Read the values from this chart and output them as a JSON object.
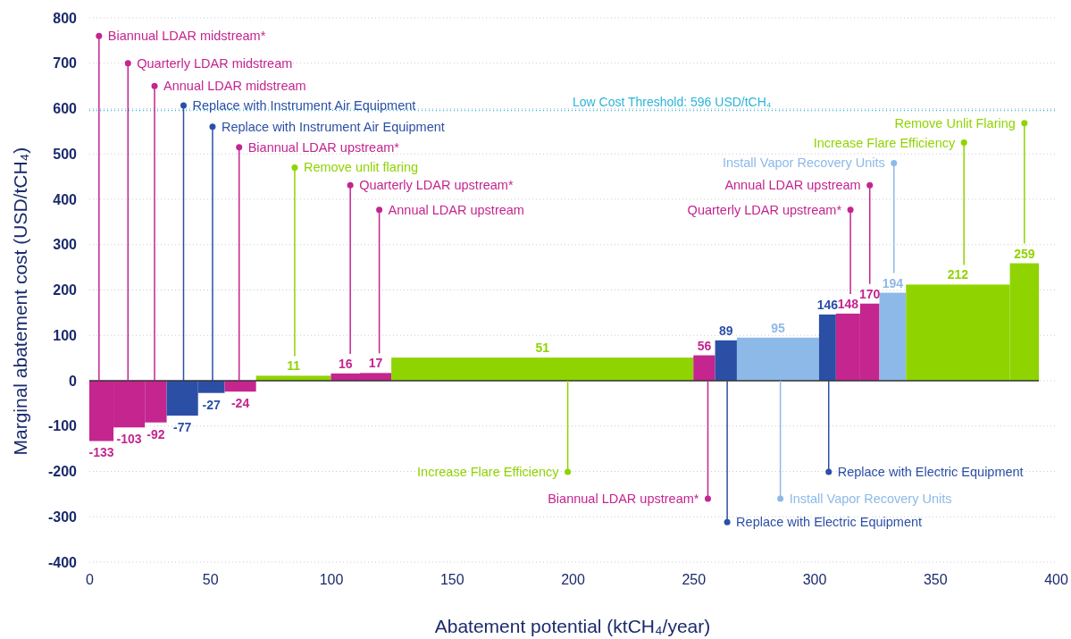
{
  "chart_data": {
    "type": "histogram",
    "xlabel": "Abatement potential (ktCH₄/year)",
    "ylabel": "Marginal abatement cost (USD/tCH₄)",
    "bins": [
      0,
      10,
      23,
      32,
      45,
      56,
      69,
      100,
      112,
      125,
      250,
      259,
      268,
      302,
      309,
      319,
      327,
      338,
      381,
      393
    ],
    "values": [
      -133,
      -103,
      -92,
      -77,
      -27,
      -24,
      11,
      16,
      17,
      51,
      56,
      89,
      95,
      146,
      148,
      170,
      194,
      212,
      259
    ],
    "colors": [
      "#c4258f",
      "#c4258f",
      "#c4258f",
      "#2c4fa6",
      "#2c4fa6",
      "#c4258f",
      "#8fd400",
      "#c4258f",
      "#c4258f",
      "#8fd400",
      "#c4258f",
      "#2c4fa6",
      "#8db9e8",
      "#2c4fa6",
      "#c4258f",
      "#c4258f",
      "#8db9e8",
      "#8fd400",
      "#8fd400"
    ],
    "data_labels": true,
    "xlim": [
      0,
      400
    ],
    "xticks": [
      0,
      50,
      100,
      150,
      200,
      250,
      300,
      350,
      400
    ],
    "ylim": [
      -400,
      800
    ],
    "yticks": [
      -400,
      -300,
      -200,
      -100,
      0,
      100,
      200,
      300,
      400,
      500,
      600,
      700,
      800
    ],
    "grid": "y",
    "ref_lines": [
      {
        "axis": "y",
        "value": 596,
        "label": "Low Cost Threshold: 596 USD/tCH₄",
        "color": "#2bb5d8",
        "line_style": "dotted"
      }
    ],
    "annotations": [
      {
        "text": "Biannual LDAR midstream*",
        "x": 4,
        "y": 760
      },
      {
        "text": "Quarterly LDAR midstream",
        "x": 16,
        "y": 700
      },
      {
        "text": "Annual LDAR midstream",
        "x": 27,
        "y": 650
      },
      {
        "text": "Replace with Instrument Air Equipment",
        "x": 39,
        "y": 607
      },
      {
        "text": "Replace with Instrument Air Equipment",
        "x": 51,
        "y": 560
      },
      {
        "text": "Biannual LDAR upstream*",
        "x": 62,
        "y": 515
      },
      {
        "text": "Remove unlit flaring",
        "x": 85,
        "y": 470
      },
      {
        "text": "Quarterly LDAR upstream*",
        "x": 108,
        "y": 431
      },
      {
        "text": "Annual LDAR upstream",
        "x": 120,
        "y": 377
      },
      {
        "text": "Increase Flare Efficiency",
        "x": 198,
        "y": -201
      },
      {
        "text": "Biannual LDAR upstream*",
        "x": 256,
        "y": -260
      },
      {
        "text": "Replace with Electric Equipment",
        "x": 264,
        "y": -312
      },
      {
        "text": "Install Vapor Recovery Units",
        "x": 286,
        "y": -260
      },
      {
        "text": "Replace with Electric Equipment",
        "x": 306,
        "y": -201
      },
      {
        "text": "Quarterly LDAR upstream*",
        "x": 315,
        "y": 377
      },
      {
        "text": "Annual LDAR upstream",
        "x": 323,
        "y": 431
      },
      {
        "text": "Install Vapor Recovery Units",
        "x": 333,
        "y": 480
      },
      {
        "text": "Increase Flare Efficiency",
        "x": 362,
        "y": 525
      },
      {
        "text": "Remove Unlit Flaring",
        "x": 387,
        "y": 568
      }
    ]
  }
}
